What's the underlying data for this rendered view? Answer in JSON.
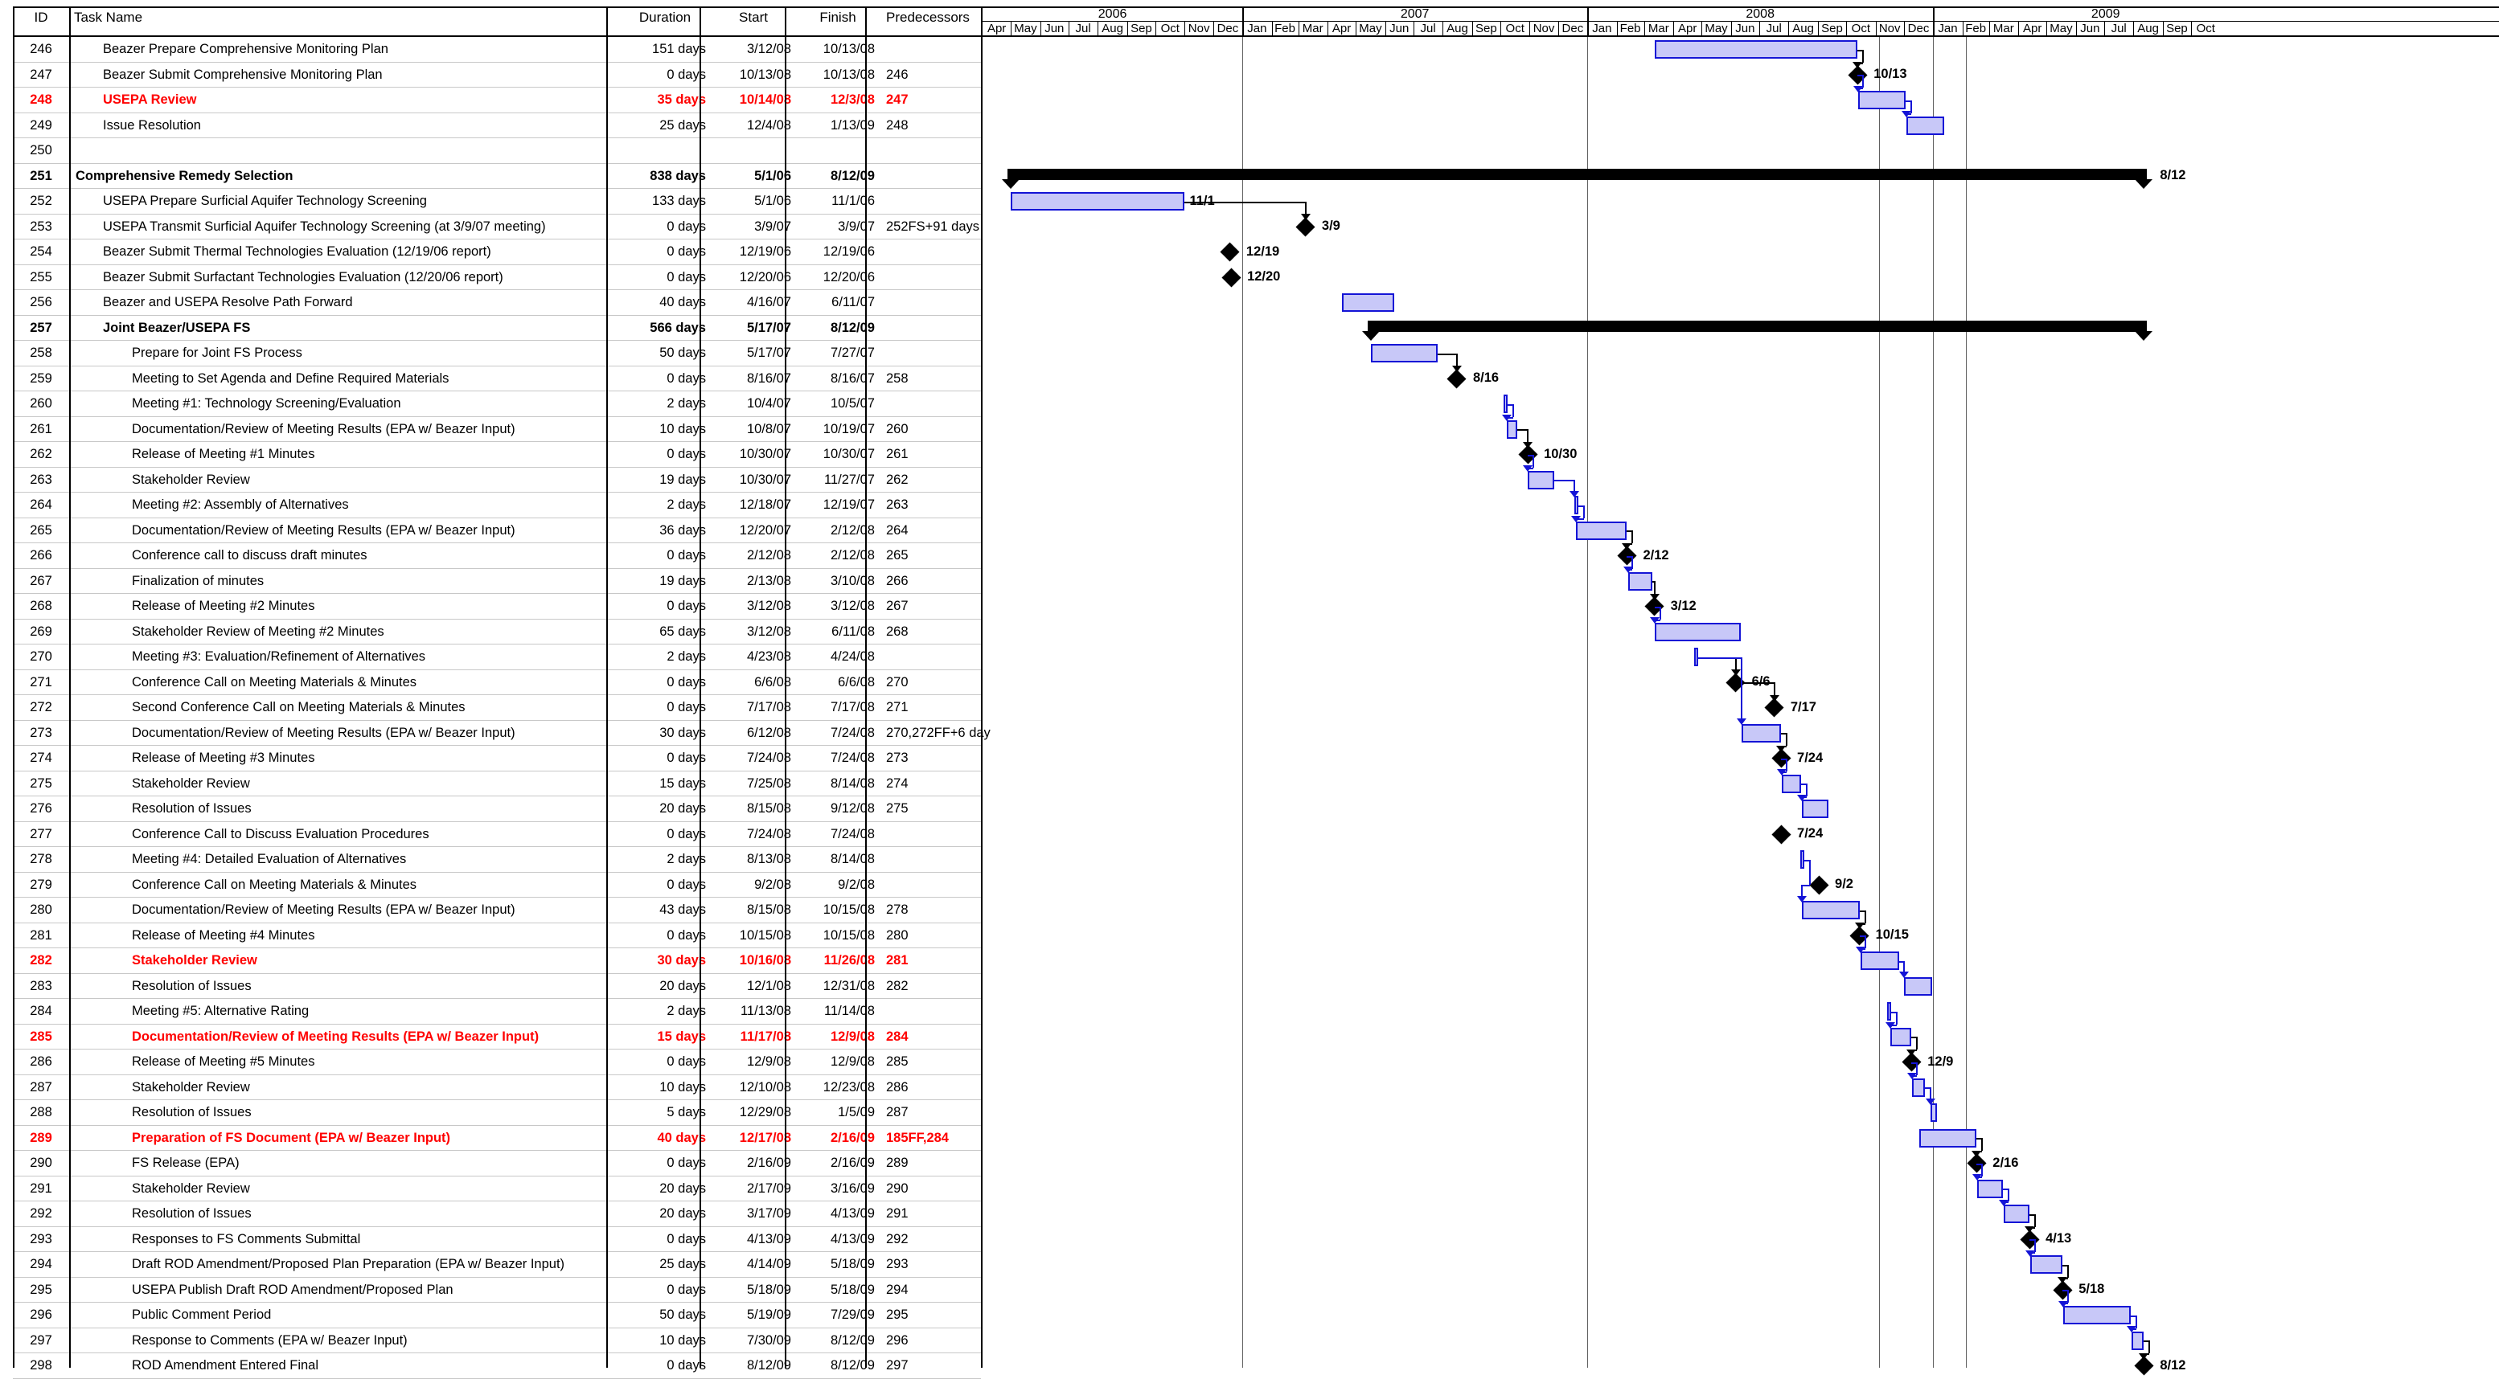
{
  "columns": {
    "id": "ID",
    "task_name": "Task Name",
    "duration": "Duration",
    "start": "Start",
    "finish": "Finish",
    "predecessors": "Predecessors"
  },
  "timeline": {
    "years": [
      "2006",
      "2007",
      "2008",
      "2009"
    ],
    "months_2006": [
      "Apr",
      "May",
      "Jun",
      "Jul",
      "Aug",
      "Sep",
      "Oct",
      "Nov",
      "Dec"
    ],
    "months_2007": [
      "Jan",
      "Feb",
      "Mar",
      "Apr",
      "May",
      "Jun",
      "Jul",
      "Aug",
      "Sep",
      "Oct",
      "Nov",
      "Dec"
    ],
    "months_2008": [
      "Jan",
      "Feb",
      "Mar",
      "Apr",
      "May",
      "Jun",
      "Jul",
      "Aug",
      "Sep",
      "Oct",
      "Nov",
      "Dec"
    ],
    "months_2009": [
      "Jan",
      "Feb",
      "Mar",
      "Apr",
      "May",
      "Jun",
      "Jul",
      "Aug",
      "Sep",
      "Oct"
    ]
  },
  "colors": {
    "task_bar_fill": "#c8c8f8",
    "task_bar_border": "#1414d6",
    "critical_text": "#ff0000",
    "summary_bar": "#000000"
  },
  "tasks": [
    {
      "id": "246",
      "name": "Beazer Prepare Comprehensive Monitoring Plan",
      "duration": "151 days",
      "start": "3/12/08",
      "finish": "10/13/08",
      "pred": "",
      "indent": 1,
      "style": "",
      "kind": "bar",
      "s": "2008-03-12",
      "f": "2008-10-13",
      "label": ""
    },
    {
      "id": "247",
      "name": "Beazer Submit Comprehensive Monitoring Plan",
      "duration": "0 days",
      "start": "10/13/08",
      "finish": "10/13/08",
      "pred": "246",
      "indent": 1,
      "style": "",
      "kind": "mile",
      "s": "2008-10-13",
      "f": "2008-10-13",
      "label": "10/13"
    },
    {
      "id": "248",
      "name": "USEPA Review",
      "duration": "35 days",
      "start": "10/14/08",
      "finish": "12/3/08",
      "pred": "247",
      "indent": 1,
      "style": "red",
      "kind": "bar",
      "s": "2008-10-14",
      "f": "2008-12-03",
      "label": ""
    },
    {
      "id": "249",
      "name": "Issue Resolution",
      "duration": "25 days",
      "start": "12/4/08",
      "finish": "1/13/09",
      "pred": "248",
      "indent": 1,
      "style": "",
      "kind": "bar",
      "s": "2008-12-04",
      "f": "2009-01-13",
      "label": ""
    },
    {
      "id": "250",
      "name": "",
      "duration": "",
      "start": "",
      "finish": "",
      "pred": "",
      "indent": 1,
      "style": "",
      "kind": "none",
      "s": "",
      "f": "",
      "label": ""
    },
    {
      "id": "251",
      "name": "Comprehensive Remedy Selection",
      "duration": "838 days",
      "start": "5/1/06",
      "finish": "8/12/09",
      "pred": "",
      "indent": 0,
      "style": "bold",
      "kind": "summary",
      "s": "2006-05-01",
      "f": "2009-08-12",
      "label": "8/12"
    },
    {
      "id": "252",
      "name": "USEPA Prepare Surficial Aquifer Technology Screening",
      "duration": "133 days",
      "start": "5/1/06",
      "finish": "11/1/06",
      "pred": "",
      "indent": 1,
      "style": "",
      "kind": "bar",
      "s": "2006-05-01",
      "f": "2006-11-01",
      "label": "11/1"
    },
    {
      "id": "253",
      "name": "USEPA Transmit Surficial Aquifer Technology Screening (at 3/9/07 meeting)",
      "duration": "0 days",
      "start": "3/9/07",
      "finish": "3/9/07",
      "pred": "252FS+91 days",
      "indent": 1,
      "style": "",
      "kind": "mile",
      "s": "2007-03-09",
      "f": "2007-03-09",
      "label": "3/9"
    },
    {
      "id": "254",
      "name": "Beazer Submit Thermal Technologies Evaluation (12/19/06 report)",
      "duration": "0 days",
      "start": "12/19/06",
      "finish": "12/19/06",
      "pred": "",
      "indent": 1,
      "style": "",
      "kind": "mile",
      "s": "2006-12-19",
      "f": "2006-12-19",
      "label": "12/19"
    },
    {
      "id": "255",
      "name": "Beazer Submit Surfactant Technologies Evaluation (12/20/06 report)",
      "duration": "0 days",
      "start": "12/20/06",
      "finish": "12/20/06",
      "pred": "",
      "indent": 1,
      "style": "",
      "kind": "mile",
      "s": "2006-12-20",
      "f": "2006-12-20",
      "label": "12/20"
    },
    {
      "id": "256",
      "name": "Beazer and USEPA Resolve Path Forward",
      "duration": "40 days",
      "start": "4/16/07",
      "finish": "6/11/07",
      "pred": "",
      "indent": 1,
      "style": "",
      "kind": "bar",
      "s": "2007-04-16",
      "f": "2007-06-11",
      "label": ""
    },
    {
      "id": "257",
      "name": "Joint Beazer/USEPA FS",
      "duration": "566 days",
      "start": "5/17/07",
      "finish": "8/12/09",
      "pred": "",
      "indent": 1,
      "style": "bold",
      "kind": "summary",
      "s": "2007-05-17",
      "f": "2009-08-12",
      "label": ""
    },
    {
      "id": "258",
      "name": "Prepare for Joint FS Process",
      "duration": "50 days",
      "start": "5/17/07",
      "finish": "7/27/07",
      "pred": "",
      "indent": 2,
      "style": "",
      "kind": "bar",
      "s": "2007-05-17",
      "f": "2007-07-27",
      "label": ""
    },
    {
      "id": "259",
      "name": "Meeting to Set Agenda and Define Required Materials",
      "duration": "0 days",
      "start": "8/16/07",
      "finish": "8/16/07",
      "pred": "258",
      "indent": 2,
      "style": "",
      "kind": "mile",
      "s": "2007-08-16",
      "f": "2007-08-16",
      "label": "8/16"
    },
    {
      "id": "260",
      "name": "Meeting #1: Technology Screening/Evaluation",
      "duration": "2 days",
      "start": "10/4/07",
      "finish": "10/5/07",
      "pred": "",
      "indent": 2,
      "style": "",
      "kind": "bar",
      "s": "2007-10-04",
      "f": "2007-10-05",
      "label": ""
    },
    {
      "id": "261",
      "name": "Documentation/Review of Meeting Results (EPA w/ Beazer Input)",
      "duration": "10 days",
      "start": "10/8/07",
      "finish": "10/19/07",
      "pred": "260",
      "indent": 2,
      "style": "",
      "kind": "bar",
      "s": "2007-10-08",
      "f": "2007-10-19",
      "label": ""
    },
    {
      "id": "262",
      "name": "Release of Meeting #1 Minutes",
      "duration": "0 days",
      "start": "10/30/07",
      "finish": "10/30/07",
      "pred": "261",
      "indent": 2,
      "style": "",
      "kind": "mile",
      "s": "2007-10-30",
      "f": "2007-10-30",
      "label": "10/30"
    },
    {
      "id": "263",
      "name": "Stakeholder Review",
      "duration": "19 days",
      "start": "10/30/07",
      "finish": "11/27/07",
      "pred": "262",
      "indent": 2,
      "style": "",
      "kind": "bar",
      "s": "2007-10-30",
      "f": "2007-11-27",
      "label": ""
    },
    {
      "id": "264",
      "name": "Meeting #2: Assembly of Alternatives",
      "duration": "2 days",
      "start": "12/18/07",
      "finish": "12/19/07",
      "pred": "263",
      "indent": 2,
      "style": "",
      "kind": "bar",
      "s": "2007-12-18",
      "f": "2007-12-19",
      "label": ""
    },
    {
      "id": "265",
      "name": "Documentation/Review of Meeting Results (EPA w/ Beazer Input)",
      "duration": "36 days",
      "start": "12/20/07",
      "finish": "2/12/08",
      "pred": "264",
      "indent": 2,
      "style": "",
      "kind": "bar",
      "s": "2007-12-20",
      "f": "2008-02-12",
      "label": ""
    },
    {
      "id": "266",
      "name": "Conference call to discuss draft minutes",
      "duration": "0 days",
      "start": "2/12/08",
      "finish": "2/12/08",
      "pred": "265",
      "indent": 2,
      "style": "",
      "kind": "mile",
      "s": "2008-02-12",
      "f": "2008-02-12",
      "label": "2/12"
    },
    {
      "id": "267",
      "name": "Finalization of minutes",
      "duration": "19 days",
      "start": "2/13/08",
      "finish": "3/10/08",
      "pred": "266",
      "indent": 2,
      "style": "",
      "kind": "bar",
      "s": "2008-02-13",
      "f": "2008-03-10",
      "label": ""
    },
    {
      "id": "268",
      "name": "Release of Meeting #2 Minutes",
      "duration": "0 days",
      "start": "3/12/08",
      "finish": "3/12/08",
      "pred": "267",
      "indent": 2,
      "style": "",
      "kind": "mile",
      "s": "2008-03-12",
      "f": "2008-03-12",
      "label": "3/12"
    },
    {
      "id": "269",
      "name": "Stakeholder Review of Meeting #2 Minutes",
      "duration": "65 days",
      "start": "3/12/08",
      "finish": "6/11/08",
      "pred": "268",
      "indent": 2,
      "style": "",
      "kind": "bar",
      "s": "2008-03-12",
      "f": "2008-06-11",
      "label": ""
    },
    {
      "id": "270",
      "name": "Meeting #3: Evaluation/Refinement of Alternatives",
      "duration": "2 days",
      "start": "4/23/08",
      "finish": "4/24/08",
      "pred": "",
      "indent": 2,
      "style": "",
      "kind": "bar",
      "s": "2008-04-23",
      "f": "2008-04-24",
      "label": ""
    },
    {
      "id": "271",
      "name": "Conference Call on Meeting Materials & Minutes",
      "duration": "0 days",
      "start": "6/6/08",
      "finish": "6/6/08",
      "pred": "270",
      "indent": 2,
      "style": "",
      "kind": "mile",
      "s": "2008-06-06",
      "f": "2008-06-06",
      "label": "6/6"
    },
    {
      "id": "272",
      "name": "Second Conference Call on Meeting Materials & Minutes",
      "duration": "0 days",
      "start": "7/17/08",
      "finish": "7/17/08",
      "pred": "271",
      "indent": 2,
      "style": "",
      "kind": "mile",
      "s": "2008-07-17",
      "f": "2008-07-17",
      "label": "7/17"
    },
    {
      "id": "273",
      "name": "Documentation/Review of Meeting Results (EPA w/ Beazer Input)",
      "duration": "30 days",
      "start": "6/12/08",
      "finish": "7/24/08",
      "pred": "270,272FF+6 day",
      "indent": 2,
      "style": "",
      "kind": "bar",
      "s": "2008-06-12",
      "f": "2008-07-24",
      "label": ""
    },
    {
      "id": "274",
      "name": "Release of Meeting #3 Minutes",
      "duration": "0 days",
      "start": "7/24/08",
      "finish": "7/24/08",
      "pred": "273",
      "indent": 2,
      "style": "",
      "kind": "mile",
      "s": "2008-07-24",
      "f": "2008-07-24",
      "label": "7/24"
    },
    {
      "id": "275",
      "name": "Stakeholder Review",
      "duration": "15 days",
      "start": "7/25/08",
      "finish": "8/14/08",
      "pred": "274",
      "indent": 2,
      "style": "",
      "kind": "bar",
      "s": "2008-07-25",
      "f": "2008-08-14",
      "label": ""
    },
    {
      "id": "276",
      "name": "Resolution of Issues",
      "duration": "20 days",
      "start": "8/15/08",
      "finish": "9/12/08",
      "pred": "275",
      "indent": 2,
      "style": "",
      "kind": "bar",
      "s": "2008-08-15",
      "f": "2008-09-12",
      "label": ""
    },
    {
      "id": "277",
      "name": "Conference Call to Discuss Evaluation Procedures",
      "duration": "0 days",
      "start": "7/24/08",
      "finish": "7/24/08",
      "pred": "",
      "indent": 2,
      "style": "",
      "kind": "mile",
      "s": "2008-07-24",
      "f": "2008-07-24",
      "label": "7/24"
    },
    {
      "id": "278",
      "name": "Meeting #4: Detailed Evaluation of Alternatives",
      "duration": "2 days",
      "start": "8/13/08",
      "finish": "8/14/08",
      "pred": "",
      "indent": 2,
      "style": "",
      "kind": "bar",
      "s": "2008-08-13",
      "f": "2008-08-14",
      "label": ""
    },
    {
      "id": "279",
      "name": "Conference Call on Meeting Materials & Minutes",
      "duration": "0 days",
      "start": "9/2/08",
      "finish": "9/2/08",
      "pred": "",
      "indent": 2,
      "style": "",
      "kind": "mile",
      "s": "2008-09-02",
      "f": "2008-09-02",
      "label": "9/2"
    },
    {
      "id": "280",
      "name": "Documentation/Review of Meeting Results (EPA w/ Beazer Input)",
      "duration": "43 days",
      "start": "8/15/08",
      "finish": "10/15/08",
      "pred": "278",
      "indent": 2,
      "style": "",
      "kind": "bar",
      "s": "2008-08-15",
      "f": "2008-10-15",
      "label": ""
    },
    {
      "id": "281",
      "name": "Release of Meeting #4 Minutes",
      "duration": "0 days",
      "start": "10/15/08",
      "finish": "10/15/08",
      "pred": "280",
      "indent": 2,
      "style": "",
      "kind": "mile",
      "s": "2008-10-15",
      "f": "2008-10-15",
      "label": "10/15"
    },
    {
      "id": "282",
      "name": "Stakeholder Review",
      "duration": "30 days",
      "start": "10/16/08",
      "finish": "11/26/08",
      "pred": "281",
      "indent": 2,
      "style": "red",
      "kind": "bar",
      "s": "2008-10-16",
      "f": "2008-11-26",
      "label": ""
    },
    {
      "id": "283",
      "name": "Resolution of Issues",
      "duration": "20 days",
      "start": "12/1/08",
      "finish": "12/31/08",
      "pred": "282",
      "indent": 2,
      "style": "",
      "kind": "bar",
      "s": "2008-12-01",
      "f": "2008-12-31",
      "label": ""
    },
    {
      "id": "284",
      "name": "Meeting #5: Alternative Rating",
      "duration": "2 days",
      "start": "11/13/08",
      "finish": "11/14/08",
      "pred": "",
      "indent": 2,
      "style": "",
      "kind": "bar",
      "s": "2008-11-13",
      "f": "2008-11-14",
      "label": ""
    },
    {
      "id": "285",
      "name": "Documentation/Review of Meeting Results (EPA w/ Beazer Input)",
      "duration": "15 days",
      "start": "11/17/08",
      "finish": "12/9/08",
      "pred": "284",
      "indent": 2,
      "style": "red",
      "kind": "bar",
      "s": "2008-11-17",
      "f": "2008-12-09",
      "label": ""
    },
    {
      "id": "286",
      "name": "Release of Meeting #5 Minutes",
      "duration": "0 days",
      "start": "12/9/08",
      "finish": "12/9/08",
      "pred": "285",
      "indent": 2,
      "style": "",
      "kind": "mile",
      "s": "2008-12-09",
      "f": "2008-12-09",
      "label": "12/9"
    },
    {
      "id": "287",
      "name": "Stakeholder Review",
      "duration": "10 days",
      "start": "12/10/08",
      "finish": "12/23/08",
      "pred": "286",
      "indent": 2,
      "style": "",
      "kind": "bar",
      "s": "2008-12-10",
      "f": "2008-12-23",
      "label": ""
    },
    {
      "id": "288",
      "name": "Resolution of Issues",
      "duration": "5 days",
      "start": "12/29/08",
      "finish": "1/5/09",
      "pred": "287",
      "indent": 2,
      "style": "",
      "kind": "bar",
      "s": "2008-12-29",
      "f": "2009-01-05",
      "label": ""
    },
    {
      "id": "289",
      "name": "Preparation of FS Document (EPA w/ Beazer Input)",
      "duration": "40 days",
      "start": "12/17/08",
      "finish": "2/16/09",
      "pred": "185FF,284",
      "indent": 2,
      "style": "red",
      "kind": "bar",
      "s": "2008-12-17",
      "f": "2009-02-16",
      "label": ""
    },
    {
      "id": "290",
      "name": "FS Release (EPA)",
      "duration": "0 days",
      "start": "2/16/09",
      "finish": "2/16/09",
      "pred": "289",
      "indent": 2,
      "style": "",
      "kind": "mile",
      "s": "2009-02-16",
      "f": "2009-02-16",
      "label": "2/16"
    },
    {
      "id": "291",
      "name": "Stakeholder Review",
      "duration": "20 days",
      "start": "2/17/09",
      "finish": "3/16/09",
      "pred": "290",
      "indent": 2,
      "style": "",
      "kind": "bar",
      "s": "2009-02-17",
      "f": "2009-03-16",
      "label": ""
    },
    {
      "id": "292",
      "name": "Resolution of Issues",
      "duration": "20 days",
      "start": "3/17/09",
      "finish": "4/13/09",
      "pred": "291",
      "indent": 2,
      "style": "",
      "kind": "bar",
      "s": "2009-03-17",
      "f": "2009-04-13",
      "label": ""
    },
    {
      "id": "293",
      "name": "Responses to FS Comments Submittal",
      "duration": "0 days",
      "start": "4/13/09",
      "finish": "4/13/09",
      "pred": "292",
      "indent": 2,
      "style": "",
      "kind": "mile",
      "s": "2009-04-13",
      "f": "2009-04-13",
      "label": "4/13"
    },
    {
      "id": "294",
      "name": "Draft ROD Amendment/Proposed Plan Preparation (EPA w/ Beazer Input)",
      "duration": "25 days",
      "start": "4/14/09",
      "finish": "5/18/09",
      "pred": "293",
      "indent": 2,
      "style": "",
      "kind": "bar",
      "s": "2009-04-14",
      "f": "2009-05-18",
      "label": ""
    },
    {
      "id": "295",
      "name": "USEPA Publish Draft ROD Amendment/Proposed Plan",
      "duration": "0 days",
      "start": "5/18/09",
      "finish": "5/18/09",
      "pred": "294",
      "indent": 2,
      "style": "",
      "kind": "mile",
      "s": "2009-05-18",
      "f": "2009-05-18",
      "label": "5/18"
    },
    {
      "id": "296",
      "name": "Public Comment Period",
      "duration": "50 days",
      "start": "5/19/09",
      "finish": "7/29/09",
      "pred": "295",
      "indent": 2,
      "style": "",
      "kind": "bar",
      "s": "2009-05-19",
      "f": "2009-07-29",
      "label": ""
    },
    {
      "id": "297",
      "name": "Response to Comments (EPA w/ Beazer Input)",
      "duration": "10 days",
      "start": "7/30/09",
      "finish": "8/12/09",
      "pred": "296",
      "indent": 2,
      "style": "",
      "kind": "bar",
      "s": "2009-07-30",
      "f": "2009-08-12",
      "label": ""
    },
    {
      "id": "298",
      "name": "ROD Amendment Entered Final",
      "duration": "0 days",
      "start": "8/12/09",
      "finish": "8/12/09",
      "pred": "297",
      "indent": 2,
      "style": "",
      "kind": "mile",
      "s": "2009-08-12",
      "f": "2009-08-12",
      "label": "8/12"
    }
  ]
}
